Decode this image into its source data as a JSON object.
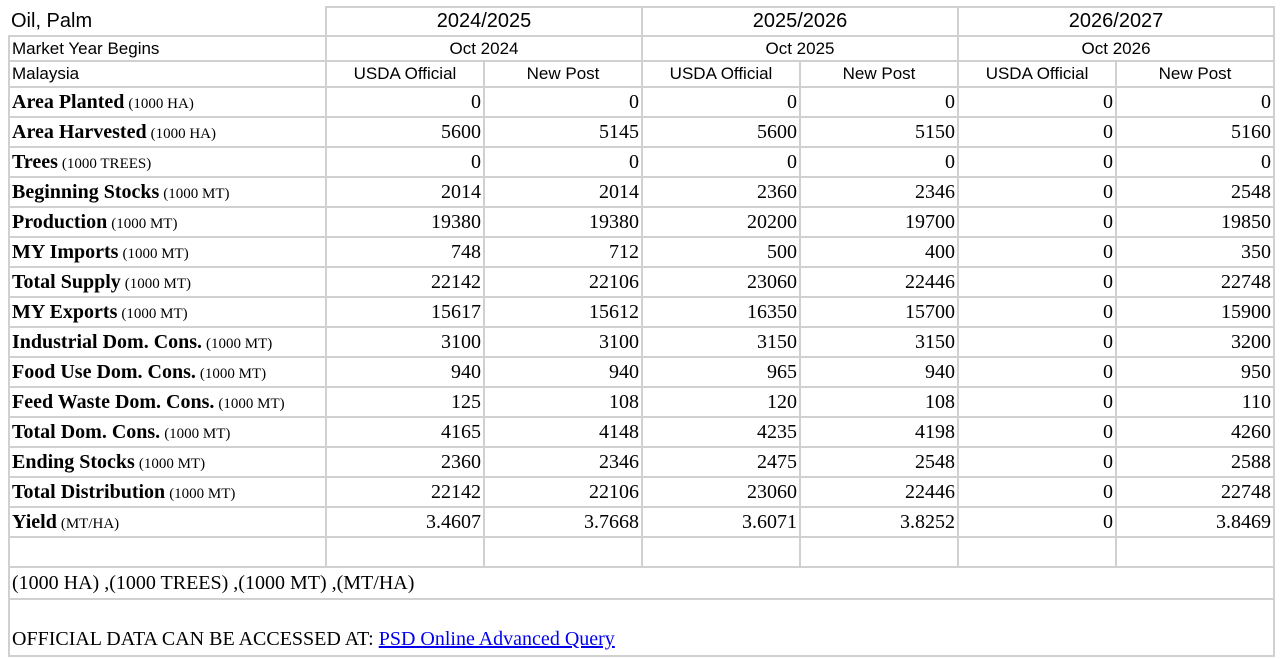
{
  "header": {
    "commodity": "Oil, Palm",
    "market_year_label": "Market Year Begins",
    "country": "Malaysia",
    "years": [
      {
        "year": "2024/2025",
        "begins": "Oct 2024"
      },
      {
        "year": "2025/2026",
        "begins": "Oct 2025"
      },
      {
        "year": "2026/2027",
        "begins": "Oct 2026"
      }
    ],
    "sub_columns": [
      "USDA Official",
      "New Post"
    ]
  },
  "table": {
    "rows": [
      {
        "name": "Area Planted",
        "unit": "(1000 HA)",
        "values": [
          0,
          0,
          0,
          0,
          0,
          0
        ]
      },
      {
        "name": "Area Harvested",
        "unit": "(1000 HA)",
        "values": [
          5600,
          5145,
          5600,
          5150,
          0,
          5160
        ]
      },
      {
        "name": "Trees",
        "unit": "(1000 TREES)",
        "values": [
          0,
          0,
          0,
          0,
          0,
          0
        ]
      },
      {
        "name": "Beginning Stocks",
        "unit": "(1000 MT)",
        "values": [
          2014,
          2014,
          2360,
          2346,
          0,
          2548
        ]
      },
      {
        "name": "Production",
        "unit": "(1000 MT)",
        "values": [
          19380,
          19380,
          20200,
          19700,
          0,
          19850
        ]
      },
      {
        "name": "MY Imports",
        "unit": "(1000 MT)",
        "values": [
          748,
          712,
          500,
          400,
          0,
          350
        ]
      },
      {
        "name": "Total Supply",
        "unit": "(1000 MT)",
        "values": [
          22142,
          22106,
          23060,
          22446,
          0,
          22748
        ]
      },
      {
        "name": "MY Exports",
        "unit": "(1000 MT)",
        "values": [
          15617,
          15612,
          16350,
          15700,
          0,
          15900
        ]
      },
      {
        "name": "Industrial Dom. Cons.",
        "unit": "(1000 MT)",
        "values": [
          3100,
          3100,
          3150,
          3150,
          0,
          3200
        ]
      },
      {
        "name": "Food Use Dom. Cons.",
        "unit": "(1000 MT)",
        "values": [
          940,
          940,
          965,
          940,
          0,
          950
        ]
      },
      {
        "name": "Feed Waste Dom. Cons.",
        "unit": "(1000 MT)",
        "values": [
          125,
          108,
          120,
          108,
          0,
          110
        ]
      },
      {
        "name": "Total Dom. Cons.",
        "unit": "(1000 MT)",
        "values": [
          4165,
          4148,
          4235,
          4198,
          0,
          4260
        ]
      },
      {
        "name": "Ending Stocks",
        "unit": "(1000 MT)",
        "values": [
          2360,
          2346,
          2475,
          2548,
          0,
          2588
        ]
      },
      {
        "name": "Total Distribution",
        "unit": "(1000 MT)",
        "values": [
          22142,
          22106,
          23060,
          22446,
          0,
          22748
        ]
      },
      {
        "name": "Yield",
        "unit": "(MT/HA)",
        "values": [
          3.4607,
          3.7668,
          3.6071,
          3.8252,
          0,
          3.8469
        ]
      }
    ]
  },
  "footer": {
    "units_note": "(1000 HA) ,(1000 TREES) ,(1000 MT) ,(MT/HA)",
    "access_label": "OFFICIAL DATA CAN BE ACCESSED AT: ",
    "link_text": "PSD Online Advanced Query"
  }
}
